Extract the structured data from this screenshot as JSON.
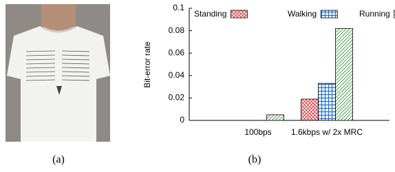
{
  "chart_data": {
    "type": "bar",
    "y_label": "Bit-error rate",
    "categories": [
      "100bps",
      "1.6kbps w/ 2x MRC"
    ],
    "series": [
      {
        "name": "Standing",
        "color": "#e0262b",
        "values": [
          0,
          0.019
        ]
      },
      {
        "name": "Walking",
        "color": "#1f6fd0",
        "values": [
          0,
          0.033
        ]
      },
      {
        "name": "Running",
        "color": "#3a9a3a",
        "values": [
          0.005,
          0.082
        ]
      }
    ],
    "ylim": [
      0,
      0.1
    ],
    "yticks": [
      0,
      0.02,
      0.04,
      0.06,
      0.08,
      0.1
    ],
    "legend": "top"
  },
  "captions": [
    "(a)",
    "(b)"
  ]
}
